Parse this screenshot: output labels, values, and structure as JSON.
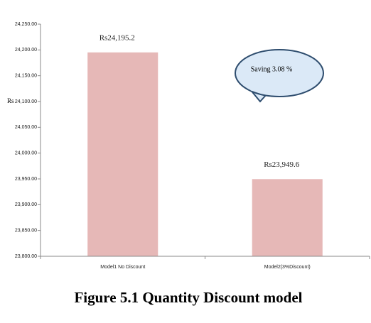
{
  "chart_data": {
    "type": "bar",
    "title": "Figure 5.1 Quantity Discount model",
    "ylabel": "Rs",
    "categories": [
      "Model1 No Discount",
      "Model2(3%Discount)"
    ],
    "values": [
      24195.2,
      23949.6
    ],
    "value_labels": [
      "Rs24,195.2",
      "Rs23,949.6"
    ],
    "color": "#e6b8b7",
    "annotation": "Saving 3.08 %",
    "ylim": [
      23800,
      24250
    ],
    "yticks": [
      {
        "value": 23800,
        "label": "23,800.00"
      },
      {
        "value": 23850,
        "label": "23,850.00"
      },
      {
        "value": 23900,
        "label": "23,900.00"
      },
      {
        "value": 23950,
        "label": "23,950.00"
      },
      {
        "value": 24000,
        "label": "24,000.00"
      },
      {
        "value": 24050,
        "label": "24,050.00"
      },
      {
        "value": 24100,
        "label": "24,100.00"
      },
      {
        "value": 24150,
        "label": "24,150.00"
      },
      {
        "value": 24200,
        "label": "24,200.00"
      },
      {
        "value": 24250,
        "label": "24,250.00"
      }
    ]
  }
}
